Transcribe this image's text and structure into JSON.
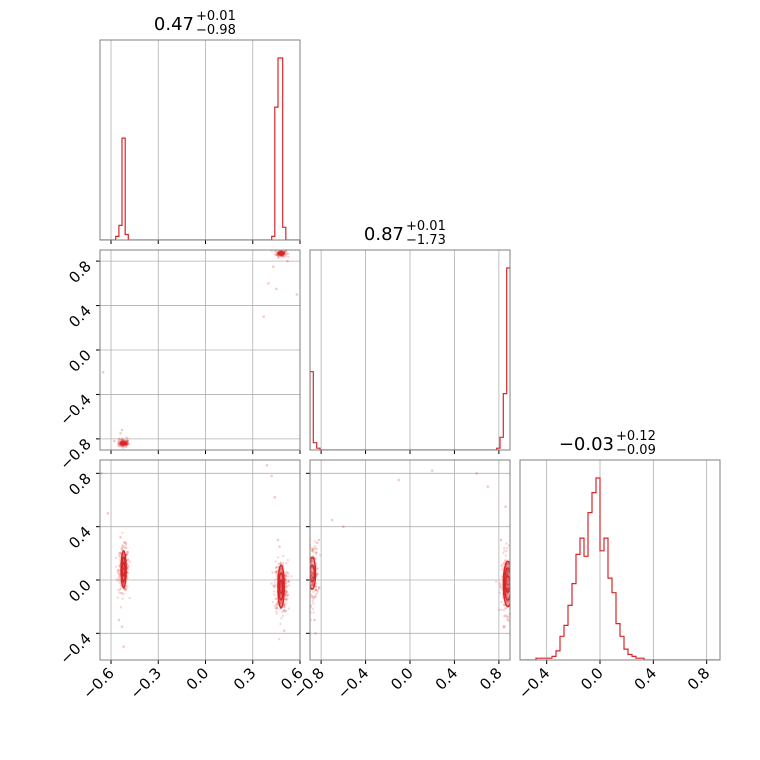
{
  "colors": {
    "series": "#d62728",
    "grid": "#b0b0b0",
    "frame": "#808080"
  },
  "chart_data": {
    "type": "corner",
    "parameters": [
      {
        "range": [
          -0.67,
          0.6
        ],
        "ticks": [
          -0.6,
          -0.3,
          0.0,
          0.3,
          0.6
        ],
        "tick_labels": [
          "−0.6",
          "−0.3",
          "0.0",
          "0.3",
          "0.6"
        ],
        "title": {
          "value": "0.47",
          "plus": "+0.01",
          "minus": "−0.98"
        }
      },
      {
        "range": [
          -0.9,
          0.9
        ],
        "ticks": [
          -0.8,
          -0.4,
          0.0,
          0.4,
          0.8
        ],
        "tick_labels": [
          "−0.8",
          "−0.4",
          "0.0",
          "0.4",
          "0.8"
        ],
        "title": {
          "value": "0.87",
          "plus": "+0.01",
          "minus": "−1.73"
        }
      },
      {
        "range": [
          -0.6,
          0.9
        ],
        "ticks": [
          -0.4,
          0.0,
          0.4,
          0.8
        ],
        "tick_labels": [
          "−0.4",
          "0.0",
          "0.4",
          "0.8"
        ],
        "title": {
          "value": "−0.03",
          "plus": "+0.12",
          "minus": "−0.09"
        }
      }
    ],
    "histograms": [
      {
        "param": 0,
        "steps": [
          [
            -0.67,
            0
          ],
          [
            -0.57,
            0
          ],
          [
            -0.57,
            0.02
          ],
          [
            -0.55,
            0.02
          ],
          [
            -0.55,
            0.08
          ],
          [
            -0.53,
            0.08
          ],
          [
            -0.53,
            0.56
          ],
          [
            -0.51,
            0.56
          ],
          [
            -0.51,
            0.03
          ],
          [
            -0.49,
            0.03
          ],
          [
            -0.49,
            0
          ],
          [
            0.42,
            0
          ],
          [
            0.42,
            0.02
          ],
          [
            0.44,
            0.02
          ],
          [
            0.44,
            0.73
          ],
          [
            0.46,
            0.73
          ],
          [
            0.46,
            1.0
          ],
          [
            0.49,
            1.0
          ],
          [
            0.49,
            0.07
          ],
          [
            0.51,
            0.07
          ],
          [
            0.51,
            0
          ],
          [
            0.6,
            0
          ]
        ]
      },
      {
        "param": 1,
        "steps": [
          [
            -0.9,
            0
          ],
          [
            -0.9,
            0.43
          ],
          [
            -0.87,
            0.43
          ],
          [
            -0.87,
            0.04
          ],
          [
            -0.84,
            0.04
          ],
          [
            -0.84,
            0.01
          ],
          [
            -0.81,
            0.01
          ],
          [
            -0.81,
            0
          ],
          [
            0.78,
            0
          ],
          [
            0.78,
            0.01
          ],
          [
            0.81,
            0.01
          ],
          [
            0.81,
            0.07
          ],
          [
            0.84,
            0.07
          ],
          [
            0.84,
            0.31
          ],
          [
            0.87,
            0.31
          ],
          [
            0.87,
            1.0
          ],
          [
            0.9,
            1.0
          ]
        ]
      },
      {
        "param": 2,
        "steps": [
          [
            -0.6,
            0
          ],
          [
            -0.48,
            0
          ],
          [
            -0.48,
            0.01
          ],
          [
            -0.36,
            0.01
          ],
          [
            -0.36,
            0.02
          ],
          [
            -0.33,
            0.02
          ],
          [
            -0.33,
            0.05
          ],
          [
            -0.3,
            0.05
          ],
          [
            -0.3,
            0.13
          ],
          [
            -0.27,
            0.13
          ],
          [
            -0.27,
            0.19
          ],
          [
            -0.24,
            0.19
          ],
          [
            -0.24,
            0.3
          ],
          [
            -0.21,
            0.3
          ],
          [
            -0.21,
            0.42
          ],
          [
            -0.18,
            0.42
          ],
          [
            -0.18,
            0.58
          ],
          [
            -0.15,
            0.58
          ],
          [
            -0.15,
            0.67
          ],
          [
            -0.12,
            0.67
          ],
          [
            -0.12,
            0.57
          ],
          [
            -0.09,
            0.57
          ],
          [
            -0.09,
            0.81
          ],
          [
            -0.06,
            0.81
          ],
          [
            -0.06,
            0.92
          ],
          [
            -0.03,
            0.92
          ],
          [
            -0.03,
            1.0
          ],
          [
            0.0,
            1.0
          ],
          [
            0.0,
            0.6
          ],
          [
            0.03,
            0.6
          ],
          [
            0.03,
            0.67
          ],
          [
            0.06,
            0.67
          ],
          [
            0.06,
            0.45
          ],
          [
            0.09,
            0.45
          ],
          [
            0.09,
            0.37
          ],
          [
            0.12,
            0.37
          ],
          [
            0.12,
            0.2
          ],
          [
            0.15,
            0.2
          ],
          [
            0.15,
            0.13
          ],
          [
            0.18,
            0.13
          ],
          [
            0.18,
            0.06
          ],
          [
            0.21,
            0.06
          ],
          [
            0.21,
            0.03
          ],
          [
            0.24,
            0.03
          ],
          [
            0.24,
            0.02
          ],
          [
            0.27,
            0.02
          ],
          [
            0.27,
            0.01
          ],
          [
            0.33,
            0.01
          ],
          [
            0.33,
            0
          ],
          [
            0.9,
            0
          ]
        ]
      }
    ],
    "scatter_panels": [
      {
        "x_param": 0,
        "y_param": 1,
        "clusters": [
          {
            "center": [
              -0.52,
              -0.84
            ],
            "spread": [
              0.012,
              0.012
            ],
            "n": 120,
            "contour_radii": [
              [
                0.012,
                0.008
              ],
              [
                0.02,
                0.013
              ]
            ]
          },
          {
            "center": [
              0.48,
              0.87
            ],
            "spread": [
              0.012,
              0.012
            ],
            "n": 120,
            "contour_radii": [
              [
                0.012,
                0.008
              ],
              [
                0.02,
                0.013
              ]
            ]
          }
        ],
        "sparse_points": [
          [
            -0.54,
            -0.75
          ],
          [
            -0.55,
            -0.8
          ],
          [
            -0.5,
            -0.79
          ],
          [
            -0.53,
            -0.72
          ],
          [
            0.4,
            0.6
          ],
          [
            0.37,
            0.3
          ],
          [
            0.43,
            0.75
          ],
          [
            0.45,
            0.55
          ],
          [
            0.58,
            0.5
          ],
          [
            0.52,
            0.8
          ],
          [
            -0.58,
            -0.82
          ],
          [
            -0.65,
            -0.2
          ]
        ]
      },
      {
        "x_param": 0,
        "y_param": 2,
        "clusters": [
          {
            "center": [
              -0.52,
              0.08
            ],
            "spread": [
              0.012,
              0.06
            ],
            "n": 260,
            "contour_radii": [
              [
                0.008,
                0.05
              ],
              [
                0.012,
                0.09
              ],
              [
                0.016,
                0.14
              ]
            ]
          },
          {
            "center": [
              0.48,
              -0.05
            ],
            "spread": [
              0.015,
              0.07
            ],
            "n": 320,
            "contour_radii": [
              [
                0.01,
                0.05
              ],
              [
                0.015,
                0.1
              ],
              [
                0.02,
                0.16
              ]
            ]
          }
        ],
        "sparse_points": [
          [
            -0.53,
            -0.35
          ],
          [
            -0.52,
            -0.5
          ],
          [
            -0.54,
            0.32
          ],
          [
            0.46,
            0.3
          ],
          [
            0.44,
            0.62
          ],
          [
            0.42,
            0.78
          ],
          [
            0.39,
            0.86
          ],
          [
            0.5,
            -0.38
          ],
          [
            0.47,
            0.25
          ],
          [
            -0.55,
            -0.3
          ],
          [
            -0.62,
            0.5
          ],
          [
            -0.66,
            0.8
          ]
        ]
      },
      {
        "x_param": 1,
        "y_param": 2,
        "clusters": [
          {
            "center": [
              -0.88,
              0.05
            ],
            "spread": [
              0.02,
              0.08
            ],
            "n": 220,
            "contour_radii": [
              [
                0.02,
                0.06
              ],
              [
                0.03,
                0.12
              ]
            ]
          },
          {
            "center": [
              0.88,
              -0.03
            ],
            "spread": [
              0.02,
              0.08
            ],
            "n": 320,
            "contour_radii": [
              [
                0.02,
                0.06
              ],
              [
                0.03,
                0.12
              ],
              [
                0.04,
                0.17
              ]
            ]
          }
        ],
        "sparse_points": [
          [
            -0.86,
            -0.3
          ],
          [
            -0.85,
            -0.4
          ],
          [
            -0.82,
            0.3
          ],
          [
            -0.7,
            0.45
          ],
          [
            -0.6,
            0.4
          ],
          [
            0.82,
            0.3
          ],
          [
            0.6,
            0.8
          ],
          [
            0.7,
            0.7
          ],
          [
            0.2,
            0.82
          ],
          [
            -0.1,
            0.75
          ],
          [
            0.85,
            -0.35
          ],
          [
            0.86,
            0.55
          ]
        ]
      }
    ]
  }
}
